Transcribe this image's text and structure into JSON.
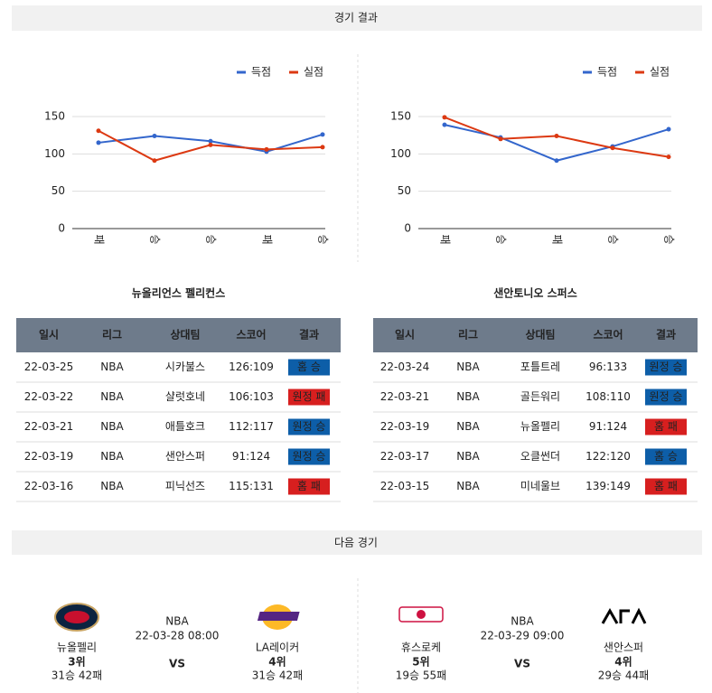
{
  "sections": [
    "경기 결과",
    "다음 경기"
  ],
  "chart_data": [
    {
      "type": "line",
      "categories": [
        "패",
        "승",
        "승",
        "패",
        "승"
      ],
      "series": [
        {
          "name": "득점",
          "color": "#3366cc",
          "values": [
            115,
            124,
            117,
            103,
            126
          ]
        },
        {
          "name": "실점",
          "color": "#dc3912",
          "values": [
            131,
            91,
            112,
            106,
            109
          ]
        }
      ],
      "ylim": [
        0,
        150
      ],
      "yticks": [
        0,
        50,
        100,
        150
      ],
      "grid": true,
      "legend": "top-right"
    },
    {
      "type": "line",
      "categories": [
        "패",
        "승",
        "패",
        "승",
        "승"
      ],
      "series": [
        {
          "name": "득점",
          "color": "#3366cc",
          "values": [
            139,
            122,
            91,
            110,
            133
          ]
        },
        {
          "name": "실점",
          "color": "#dc3912",
          "values": [
            149,
            120,
            124,
            108,
            96
          ]
        }
      ],
      "ylim": [
        0,
        150
      ],
      "yticks": [
        0,
        50,
        100,
        150
      ],
      "grid": true,
      "legend": "top-right"
    }
  ],
  "tables": [
    {
      "team": "뉴올리언스 펠리컨스",
      "columns": [
        "일시",
        "리그",
        "상대팀",
        "스코어",
        "결과"
      ],
      "rows": [
        [
          "22-03-25",
          "NBA",
          "시카불스",
          "126:109",
          {
            "text": "홈 승",
            "color": "#0d5ea8"
          }
        ],
        [
          "22-03-22",
          "NBA",
          "샬럿호네",
          "106:103",
          {
            "text": "원정 패",
            "color": "#d71f1f"
          }
        ],
        [
          "22-03-21",
          "NBA",
          "애틀호크",
          "112:117",
          {
            "text": "원정 승",
            "color": "#0d5ea8"
          }
        ],
        [
          "22-03-19",
          "NBA",
          "샌안스퍼",
          "91:124",
          {
            "text": "원정 승",
            "color": "#0d5ea8"
          }
        ],
        [
          "22-03-16",
          "NBA",
          "피닉선즈",
          "115:131",
          {
            "text": "홈 패",
            "color": "#d71f1f"
          }
        ]
      ]
    },
    {
      "team": "샌안토니오 스퍼스",
      "columns": [
        "일시",
        "리그",
        "상대팀",
        "스코어",
        "결과"
      ],
      "rows": [
        [
          "22-03-24",
          "NBA",
          "포틀트레",
          "96:133",
          {
            "text": "원정 승",
            "color": "#0d5ea8"
          }
        ],
        [
          "22-03-21",
          "NBA",
          "골든워리",
          "108:110",
          {
            "text": "원정 승",
            "color": "#0d5ea8"
          }
        ],
        [
          "22-03-19",
          "NBA",
          "뉴올펠리",
          "91:124",
          {
            "text": "홈 패",
            "color": "#d71f1f"
          }
        ],
        [
          "22-03-17",
          "NBA",
          "오클썬더",
          "122:120",
          {
            "text": "홈 승",
            "color": "#0d5ea8"
          }
        ],
        [
          "22-03-15",
          "NBA",
          "미네울브",
          "139:149",
          {
            "text": "홈 패",
            "color": "#d71f1f"
          }
        ]
      ]
    }
  ],
  "next_games": [
    {
      "league": "NBA",
      "datetime": "22-03-28 08:00",
      "vs": "VS",
      "home": {
        "name": "뉴올펠리",
        "rank": "3위",
        "record": "31승 42패"
      },
      "away": {
        "name": "LA레이커",
        "rank": "4위",
        "record": "31승 42패"
      }
    },
    {
      "league": "NBA",
      "datetime": "22-03-29 09:00",
      "vs": "VS",
      "home": {
        "name": "휴스로케",
        "rank": "5위",
        "record": "19승 55패"
      },
      "away": {
        "name": "샌안스퍼",
        "rank": "4위",
        "record": "29승 44패"
      }
    }
  ]
}
